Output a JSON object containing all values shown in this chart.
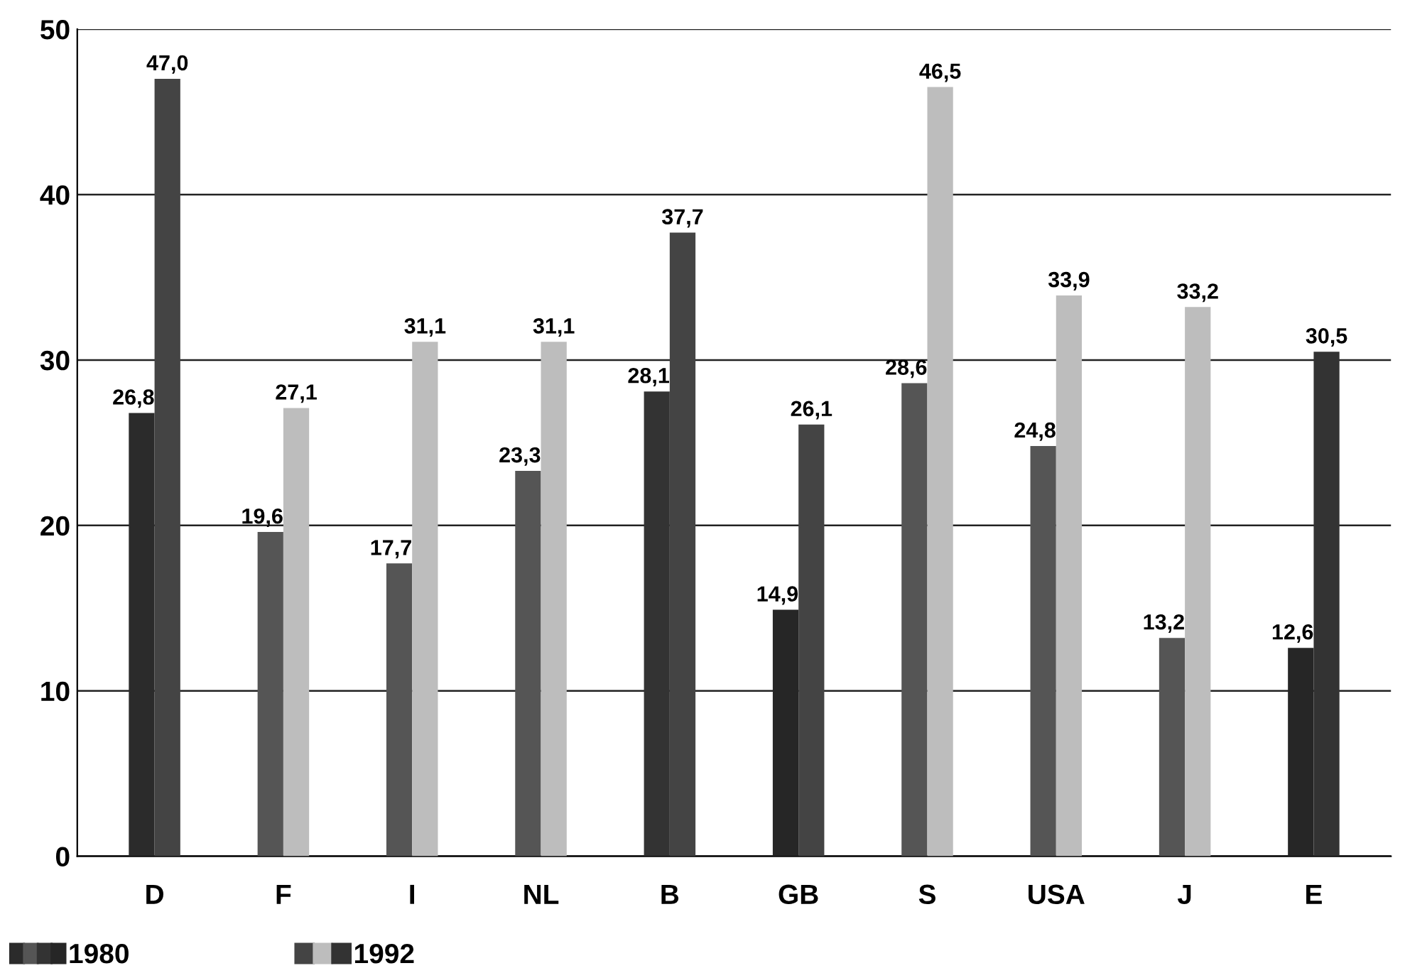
{
  "chart_data": {
    "type": "bar",
    "categories": [
      "D",
      "F",
      "I",
      "NL",
      "B",
      "GB",
      "S",
      "USA",
      "J",
      "E"
    ],
    "series": [
      {
        "name": "1980",
        "colors": [
          "#2b2b2b",
          "#555555",
          "#555555",
          "#555555",
          "#333333",
          "#262626",
          "#555555",
          "#555555",
          "#555555",
          "#262626"
        ],
        "values": [
          26.8,
          19.6,
          17.7,
          23.3,
          28.1,
          14.9,
          28.6,
          24.8,
          13.2,
          12.6
        ],
        "value_labels": [
          "26,8",
          "19,6",
          "17,7",
          "23,3",
          "28,1",
          "14,9",
          "28,6",
          "24,8",
          "13,2",
          "12,6"
        ]
      },
      {
        "name": "1992",
        "colors": [
          "#444444",
          "#bdbdbd",
          "#bdbdbd",
          "#bdbdbd",
          "#444444",
          "#444444",
          "#bdbdbd",
          "#bdbdbd",
          "#bdbdbd",
          "#333333"
        ],
        "values": [
          47.0,
          27.1,
          31.1,
          31.1,
          37.7,
          26.1,
          46.5,
          33.9,
          33.2,
          30.5
        ],
        "value_labels": [
          "47,0",
          "27,1",
          "31,1",
          "31,1",
          "37,7",
          "26,1",
          "46,5",
          "33,9",
          "33,2",
          "30,5"
        ]
      }
    ],
    "ylim": [
      0,
      50
    ],
    "yticks": [
      0,
      10,
      20,
      30,
      40,
      50
    ],
    "grid": "y",
    "legend": "bottom left"
  }
}
